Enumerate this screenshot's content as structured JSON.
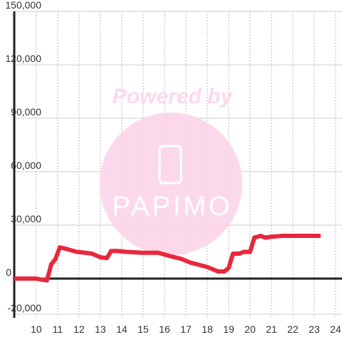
{
  "chart_data": {
    "type": "line",
    "watermark": [
      "Powered by",
      "PAPIMO"
    ],
    "x": [
      8.97,
      10,
      10.2,
      10.5,
      10.7,
      10.9,
      11.1,
      11.3,
      11.6,
      11.9,
      12.3,
      12.6,
      13,
      13.3,
      13.5,
      13.8,
      14.2,
      15,
      15.7,
      16,
      16.3,
      16.8,
      17.2,
      18,
      18.3,
      18.5,
      18.8,
      19,
      19.2,
      19.5,
      19.7,
      20,
      20.2,
      20.5,
      20.7,
      21,
      21.5,
      23.3
    ],
    "series": [
      {
        "color": "#e8283c",
        "values": [
          0,
          0,
          -500,
          -1000,
          8000,
          11000,
          17500,
          17000,
          16000,
          15000,
          14500,
          14000,
          12000,
          11500,
          15500,
          15500,
          15000,
          14500,
          14500,
          13500,
          12500,
          11000,
          9000,
          6500,
          5000,
          4000,
          4000,
          6000,
          14000,
          14000,
          15000,
          15000,
          23000,
          24000,
          23000,
          23500,
          24000,
          24000
        ]
      }
    ],
    "xlim": [
      8.97,
      24.3
    ],
    "xticks": [
      10,
      11,
      12,
      13,
      14,
      15,
      16,
      17,
      18,
      19,
      20,
      21,
      22,
      23,
      24
    ],
    "ylim": [
      -22000,
      150000
    ],
    "yticks": [
      {
        "value": -20000,
        "label": "-20,000"
      },
      0,
      {
        "value": 30000,
        "label": "30,000"
      },
      {
        "value": 60000,
        "label": "60,000"
      },
      {
        "value": 90000,
        "label": "90,000"
      },
      {
        "value": 120000,
        "label": "120,000"
      },
      {
        "value": 150000,
        "label": "150,000"
      }
    ],
    "grid": true
  }
}
